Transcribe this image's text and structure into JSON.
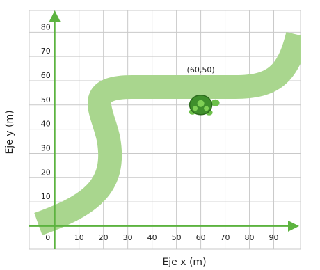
{
  "chart_data": {
    "type": "scatter",
    "x_label": "Eje x (m)",
    "y_label": "Eje y (m)",
    "x": [
      60
    ],
    "values": [
      50
    ],
    "annotation": "(60,50)",
    "color": "#3f8f2c",
    "xlim": [
      -10.5,
      101
    ],
    "ylim": [
      -9.5,
      89
    ],
    "xticks": [
      0,
      10,
      20,
      30,
      40,
      50,
      60,
      70,
      80,
      90
    ],
    "yticks": [
      10,
      20,
      30,
      40,
      50,
      60,
      70,
      80
    ],
    "grid": true
  }
}
